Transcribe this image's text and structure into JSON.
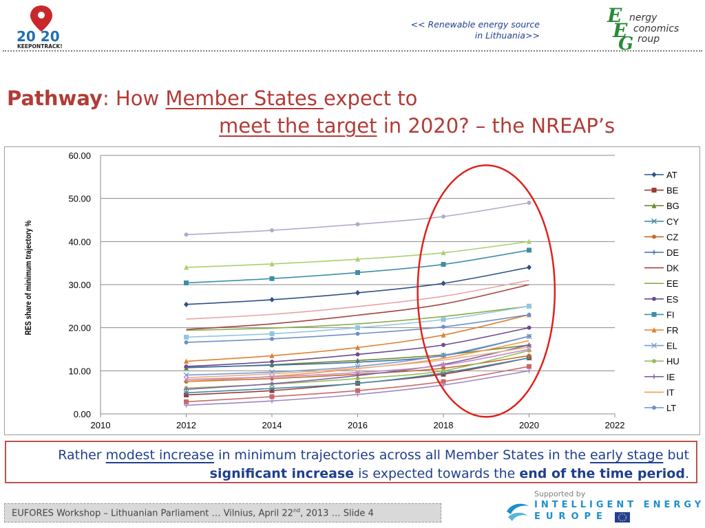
{
  "header": {
    "caption_line1": "<< Renewable energy source",
    "caption_line2": "in Lithuania>>",
    "logo_2020_text": "20 20",
    "logo_2020_tag": "KEEPONTRACK!",
    "eeg_line1": "nergy",
    "eeg_line2": "conomics",
    "eeg_line3": "roup",
    "eeg_letters": "EEG"
  },
  "title": {
    "bold": "Pathway",
    "colon": ": How ",
    "underlined1": "Member States ",
    "rest1": "expect to",
    "underlined2": "meet the target",
    "rest2": " in 2020? – the NREAP’s"
  },
  "callout": {
    "p1": "Rather ",
    "p2": "modest increase",
    "p3": " in minimum trajectories across all Member States in the ",
    "p4": "early stage",
    "p5": " but",
    "p6": "significant increase",
    "p7": " is expected towards the ",
    "p8": "end of the time period",
    "p9": "."
  },
  "footer": {
    "text_a": "EUFORES Workshop – Lithuanian Parliament … Vilnius, April 22",
    "text_sup": "nd",
    "text_b": ", 2013  …  Slide 4",
    "supported_by": "Supported by",
    "iee_line1": "INTELLIGENT ENERGY",
    "iee_line2": "EUROPE"
  },
  "colors": {
    "title": "#b23b36",
    "accent_blue": "#1f3f8c",
    "highlight_ellipse": "#e0201b"
  },
  "chart_data": {
    "type": "line",
    "ylabel": "RES share of minimum trajectory %",
    "xlabel": "",
    "xlim": [
      2010,
      2022
    ],
    "ylim": [
      0,
      60
    ],
    "xticks": [
      "2010",
      "2012",
      "2014",
      "2016",
      "2018",
      "2020",
      "2022"
    ],
    "yticks": [
      "0.00",
      "10.00",
      "20.00",
      "30.00",
      "40.00",
      "50.00",
      "60.00"
    ],
    "grid": "horizontal",
    "legend": "right",
    "x": [
      2012,
      2014,
      2016,
      2018,
      2020
    ],
    "series": [
      {
        "name": "AT",
        "color": "#2e4f86",
        "marker": "diamond",
        "values": [
          25.4,
          26.5,
          28.1,
          30.3,
          34.0
        ]
      },
      {
        "name": "BE",
        "color": "#9b3a37",
        "marker": "square",
        "values": [
          4.4,
          5.4,
          7.1,
          9.2,
          13.0
        ]
      },
      {
        "name": "BG",
        "color": "#6f8a2e",
        "marker": "triangle",
        "values": [
          10.7,
          11.4,
          12.4,
          13.7,
          16.0
        ]
      },
      {
        "name": "CY",
        "color": "#3e8aa5",
        "marker": "x",
        "values": [
          4.9,
          5.9,
          7.1,
          9.5,
          13.0
        ]
      },
      {
        "name": "CZ",
        "color": "#c0692a",
        "marker": "circle",
        "values": [
          7.5,
          8.2,
          9.2,
          10.6,
          13.5
        ]
      },
      {
        "name": "DE",
        "color": "#3f6eae",
        "marker": "plus",
        "values": [
          10.8,
          11.3,
          12.0,
          13.5,
          18.0
        ]
      },
      {
        "name": "DK",
        "color": "#a5403c",
        "marker": "none",
        "values": [
          19.6,
          20.9,
          22.9,
          25.5,
          30.0
        ]
      },
      {
        "name": "EE",
        "color": "#87ae48",
        "marker": "none",
        "values": [
          19.4,
          19.9,
          20.9,
          22.6,
          25.0
        ]
      },
      {
        "name": "ES",
        "color": "#6a4b8f",
        "marker": "circle",
        "values": [
          11.0,
          12.1,
          13.8,
          16.0,
          20.0
        ]
      },
      {
        "name": "FI",
        "color": "#3c8da8",
        "marker": "square",
        "values": [
          30.4,
          31.4,
          32.8,
          34.7,
          38.0
        ]
      },
      {
        "name": "FR",
        "color": "#df7f2f",
        "marker": "triangle",
        "values": [
          12.2,
          13.5,
          15.4,
          18.3,
          23.0
        ]
      },
      {
        "name": "EL",
        "color": "#7a9acc",
        "marker": "x",
        "values": [
          9.0,
          9.7,
          11.0,
          13.6,
          18.0
        ]
      },
      {
        "name": "HU",
        "color": "#9bbb59",
        "marker": "circle",
        "values": [
          6.0,
          6.9,
          8.2,
          10.0,
          14.7
        ]
      },
      {
        "name": "IE",
        "color": "#7b5ea7",
        "marker": "plus",
        "values": [
          5.7,
          7.0,
          8.9,
          11.5,
          16.0
        ]
      },
      {
        "name": "IT",
        "color": "#f39b49",
        "marker": "none",
        "values": [
          7.6,
          8.7,
          10.5,
          12.9,
          17.0
        ]
      },
      {
        "name": "LT",
        "color": "#6f8fc7",
        "marker": "circle",
        "values": [
          16.6,
          17.4,
          18.6,
          20.2,
          23.0
        ]
      },
      {
        "name": "",
        "color": "#b7a6cf",
        "marker": "circle",
        "values": [
          41.6,
          42.6,
          44.0,
          45.8,
          49.0
        ]
      },
      {
        "name": "",
        "color": "#a9cf70",
        "marker": "triangle",
        "values": [
          34.0,
          34.8,
          35.9,
          37.4,
          40.0
        ]
      },
      {
        "name": "",
        "color": "#e6a4a2",
        "marker": "none",
        "values": [
          22.0,
          23.1,
          24.9,
          27.3,
          31.0
        ]
      },
      {
        "name": "",
        "color": "#93c6dc",
        "marker": "square",
        "values": [
          17.8,
          18.6,
          20.0,
          21.9,
          25.0
        ]
      },
      {
        "name": "",
        "color": "#e8b08a",
        "marker": "none",
        "values": [
          8.4,
          9.3,
          10.6,
          12.5,
          15.5
        ]
      },
      {
        "name": "",
        "color": "#c48ac0",
        "marker": "x",
        "values": [
          8.0,
          8.6,
          9.6,
          11.3,
          15.0
        ]
      },
      {
        "name": "",
        "color": "#c86868",
        "marker": "square",
        "values": [
          2.8,
          4.0,
          5.4,
          7.5,
          11.0
        ]
      },
      {
        "name": "",
        "color": "#9f86c4",
        "marker": "plus",
        "values": [
          2.0,
          3.0,
          4.5,
          6.7,
          10.0
        ]
      }
    ],
    "highlight_ellipse": {
      "x_center": 2019.0,
      "y_center": 28.5,
      "x_radius": 1.6,
      "y_radius": 29.2
    }
  }
}
